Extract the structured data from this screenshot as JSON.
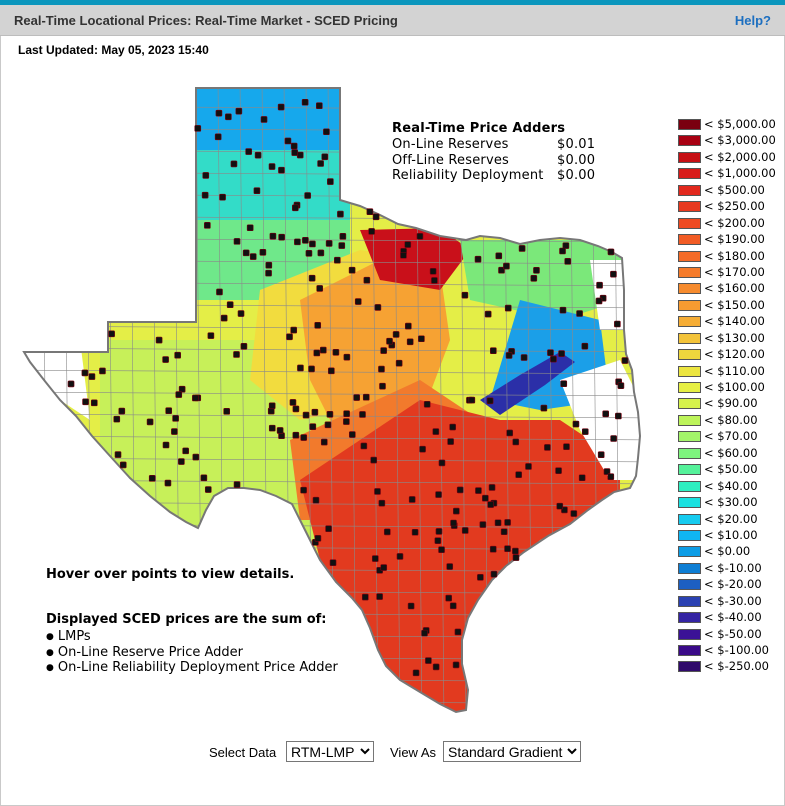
{
  "header": {
    "title": "Real-Time Locational Prices: Real-Time Market - SCED Pricing",
    "help_label": "Help?"
  },
  "last_updated": "Last Updated: May 05, 2023 15:40",
  "adders": {
    "title": "Real-Time Price Adders",
    "rows": [
      {
        "label": "On-Line Reserves",
        "value": "$0.01"
      },
      {
        "label": "Off-Line Reserves",
        "value": "$0.00"
      },
      {
        "label": "Reliability Deployment",
        "value": "$0.00"
      }
    ]
  },
  "legend": [
    {
      "label": "< $5,000.00",
      "color": "#7a0010"
    },
    {
      "label": "< $3,000.00",
      "color": "#a80012"
    },
    {
      "label": "< $2,000.00",
      "color": "#c60f14"
    },
    {
      "label": "< $1,000.00",
      "color": "#d81b1a"
    },
    {
      "label": "< $500.00",
      "color": "#e2281d"
    },
    {
      "label": "< $250.00",
      "color": "#e8391f"
    },
    {
      "label": "< $200.00",
      "color": "#ee4a22"
    },
    {
      "label": "< $190.00",
      "color": "#f25c25"
    },
    {
      "label": "< $180.00",
      "color": "#f46b28"
    },
    {
      "label": "< $170.00",
      "color": "#f57b2b"
    },
    {
      "label": "< $160.00",
      "color": "#f68b2e"
    },
    {
      "label": "< $150.00",
      "color": "#f79b31"
    },
    {
      "label": "< $140.00",
      "color": "#f6ad35"
    },
    {
      "label": "< $130.00",
      "color": "#f3c33a"
    },
    {
      "label": "< $120.00",
      "color": "#eed63d"
    },
    {
      "label": "< $110.00",
      "color": "#ece540"
    },
    {
      "label": "< $100.00",
      "color": "#e6ef44"
    },
    {
      "label": "< $90.00",
      "color": "#d6f24c"
    },
    {
      "label": "< $80.00",
      "color": "#bdf45a"
    },
    {
      "label": "< $70.00",
      "color": "#a3f46a"
    },
    {
      "label": "< $60.00",
      "color": "#7ef47e"
    },
    {
      "label": "< $50.00",
      "color": "#55f29a"
    },
    {
      "label": "< $40.00",
      "color": "#2eeec0"
    },
    {
      "label": "< $30.00",
      "color": "#1ae1e0"
    },
    {
      "label": "< $20.00",
      "color": "#16cbef"
    },
    {
      "label": "< $10.00",
      "color": "#10b5f3"
    },
    {
      "label": "< $0.00",
      "color": "#0c9de6"
    },
    {
      "label": "< $-10.00",
      "color": "#0e7ed4"
    },
    {
      "label": "< $-20.00",
      "color": "#1d5fc2"
    },
    {
      "label": "< $-30.00",
      "color": "#2a41b2"
    },
    {
      "label": "< $-40.00",
      "color": "#3424a3"
    },
    {
      "label": "< $-50.00",
      "color": "#3b1296"
    },
    {
      "label": "< $-100.00",
      "color": "#3a0a88"
    },
    {
      "label": "< $-250.00",
      "color": "#300a6b"
    }
  ],
  "map": {
    "region_colors": {
      "panhandle_north": "#16a8ec",
      "panhandle_mid": "#33dcc8",
      "panhandle_south": "#6fe88a",
      "north_hot": "#c9101a",
      "north_mid": "#f6a233",
      "dfw": "#f2dc3e",
      "west": "#c7f059",
      "far_west": "#e4ee47",
      "northeast": "#7be87a",
      "east_blue": "#1b9fe8",
      "east_dark": "#2b2fa8",
      "south": "#e23a1f",
      "south_band": "#f27a2c",
      "non_ercot": "#ffffff",
      "county_line": "#8a8a8a",
      "outline": "#777777",
      "node": "#111111"
    }
  },
  "hover_hint": "Hover over points to view details.",
  "displayed": {
    "title": "Displayed SCED prices are the sum of:",
    "items": [
      "LMPs",
      "On-Line Reserve Price Adder",
      "On-Line Reliability Deployment Price Adder"
    ]
  },
  "controls": {
    "select_data_label": "Select Data",
    "select_data_value": "RTM-LMP",
    "view_as_label": "View As",
    "view_as_value": "Standard Gradient"
  }
}
